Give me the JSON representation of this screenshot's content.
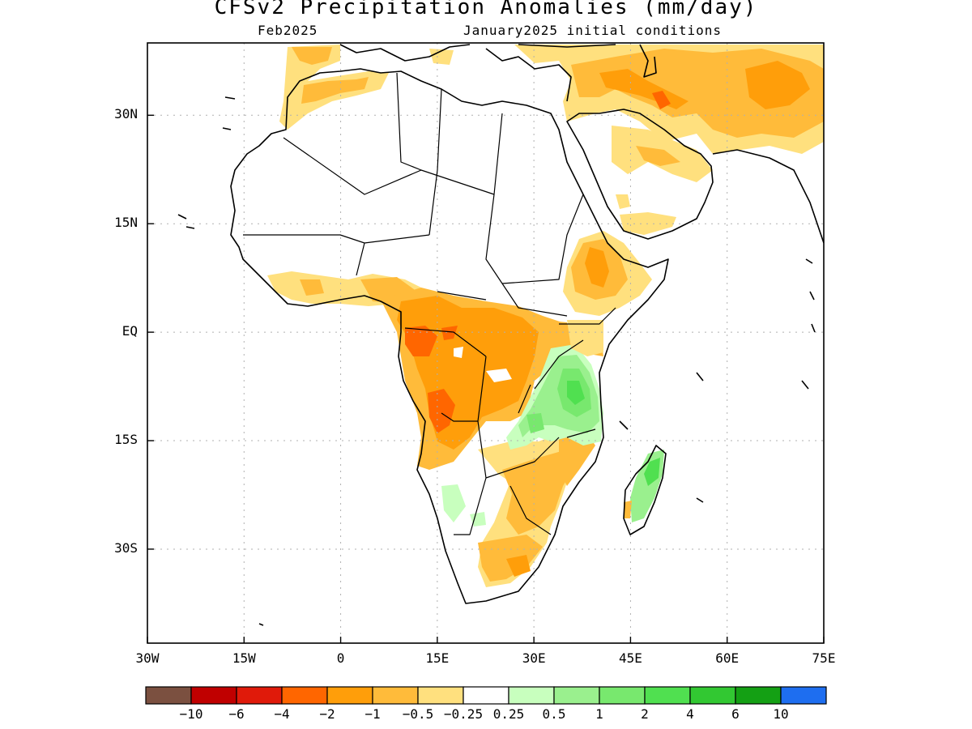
{
  "title": "CFSv2 Precipitation Anomalies (mm/day)",
  "valid_month": "Feb2025",
  "init_conditions": "January2025 initial conditions",
  "map": {
    "lon_range": [
      -30,
      75
    ],
    "lat_range": [
      -43,
      40
    ],
    "x_ticks": [
      {
        "lon": -30,
        "label": "30W"
      },
      {
        "lon": -15,
        "label": "15W"
      },
      {
        "lon": 0,
        "label": "0"
      },
      {
        "lon": 15,
        "label": "15E"
      },
      {
        "lon": 30,
        "label": "30E"
      },
      {
        "lon": 45,
        "label": "45E"
      },
      {
        "lon": 60,
        "label": "60E"
      },
      {
        "lon": 75,
        "label": "75E"
      }
    ],
    "y_ticks": [
      {
        "lat": 30,
        "label": "30N"
      },
      {
        "lat": 15,
        "label": "15N"
      },
      {
        "lat": 0,
        "label": "EQ"
      },
      {
        "lat": -15,
        "label": "15S"
      },
      {
        "lat": -30,
        "label": "30S"
      }
    ]
  },
  "legend": {
    "colors": [
      "#7b5040",
      "#c00000",
      "#e01a0a",
      "#ff6600",
      "#ff9e0a",
      "#ffbb3a",
      "#ffe07e",
      "#ffffff",
      "#c8ffbe",
      "#9af08e",
      "#78e86e",
      "#50e050",
      "#32c832",
      "#14a014",
      "#1e6ef0"
    ],
    "labels": [
      {
        "after": 0,
        "text": "−10"
      },
      {
        "after": 1,
        "text": "−6"
      },
      {
        "after": 2,
        "text": "−4"
      },
      {
        "after": 3,
        "text": "−2"
      },
      {
        "after": 4,
        "text": "−1"
      },
      {
        "after": 5,
        "text": "−0.5"
      },
      {
        "after": 6,
        "text": "−0.25"
      },
      {
        "after": 7,
        "text": "0.25"
      },
      {
        "after": 8,
        "text": "0.5"
      },
      {
        "after": 9,
        "text": "1"
      },
      {
        "after": 10,
        "text": "2"
      },
      {
        "after": 11,
        "text": "4"
      },
      {
        "after": 12,
        "text": "6"
      },
      {
        "after": 13,
        "text": "10"
      }
    ]
  }
}
